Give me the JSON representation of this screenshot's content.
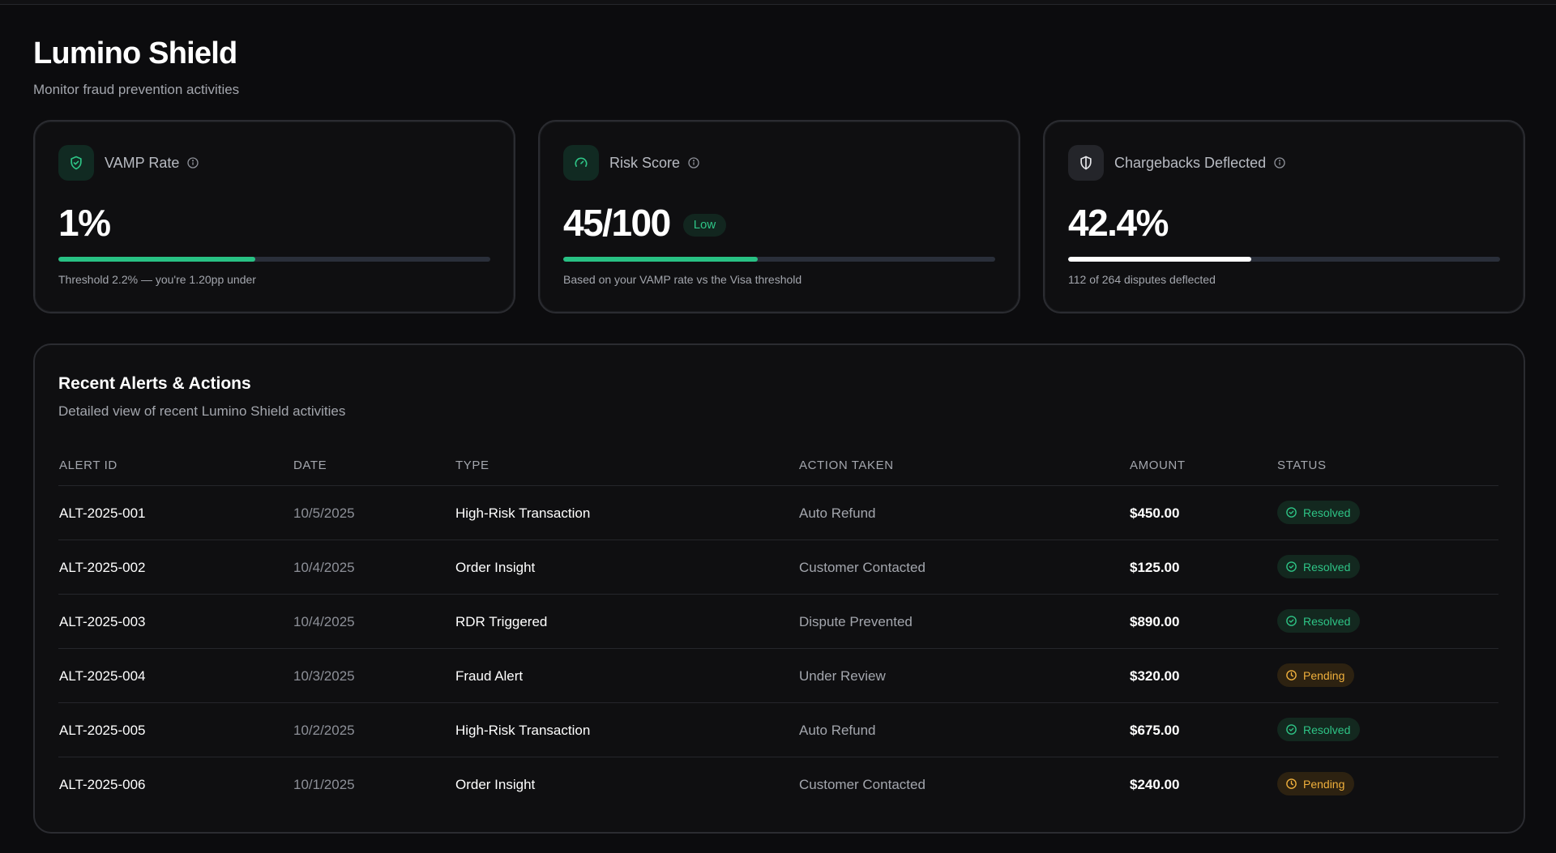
{
  "header": {
    "title": "Lumino Shield",
    "subtitle": "Monitor fraud prevention activities"
  },
  "cards": [
    {
      "label": "VAMP Rate",
      "value": "1%",
      "caption": "Threshold 2.2% — you're 1.20pp under",
      "progress": 0.455,
      "icon": "shield-check-icon",
      "bar_color": "#28c184"
    },
    {
      "label": "Risk Score",
      "value": "45/100",
      "badge": "Low",
      "caption": "Based on your VAMP rate vs the Visa threshold",
      "progress": 0.45,
      "icon": "gauge-icon",
      "bar_color": "#28c184"
    },
    {
      "label": "Chargebacks Deflected",
      "value": "42.4%",
      "caption": "112 of 264 disputes deflected",
      "progress": 0.424,
      "icon": "shield-half-icon",
      "bar_color": "#ffffff"
    }
  ],
  "alerts": {
    "title": "Recent Alerts & Actions",
    "subtitle": "Detailed view of recent Lumino Shield activities",
    "columns": [
      "ALERT ID",
      "DATE",
      "TYPE",
      "ACTION TAKEN",
      "AMOUNT",
      "STATUS"
    ],
    "rows": [
      {
        "id": "ALT-2025-001",
        "date": "10/5/2025",
        "type": "High-Risk Transaction",
        "action": "Auto Refund",
        "amount": "$450.00",
        "status": "Resolved"
      },
      {
        "id": "ALT-2025-002",
        "date": "10/4/2025",
        "type": "Order Insight",
        "action": "Customer Contacted",
        "amount": "$125.00",
        "status": "Resolved"
      },
      {
        "id": "ALT-2025-003",
        "date": "10/4/2025",
        "type": "RDR Triggered",
        "action": "Dispute Prevented",
        "amount": "$890.00",
        "status": "Resolved"
      },
      {
        "id": "ALT-2025-004",
        "date": "10/3/2025",
        "type": "Fraud Alert",
        "action": "Under Review",
        "amount": "$320.00",
        "status": "Pending"
      },
      {
        "id": "ALT-2025-005",
        "date": "10/2/2025",
        "type": "High-Risk Transaction",
        "action": "Auto Refund",
        "amount": "$675.00",
        "status": "Resolved"
      },
      {
        "id": "ALT-2025-006",
        "date": "10/1/2025",
        "type": "Order Insight",
        "action": "Customer Contacted",
        "amount": "$240.00",
        "status": "Pending"
      }
    ]
  },
  "colors": {
    "accent_green": "#28c184",
    "resolved": "#2ec486",
    "pending": "#f0b03c",
    "background": "#0c0c0e"
  }
}
